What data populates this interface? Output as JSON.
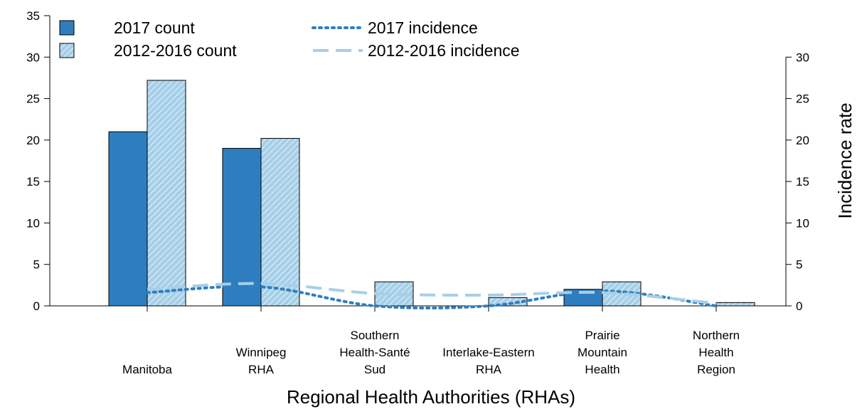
{
  "chart_data": {
    "type": "bar_line",
    "x_label": "Regional Health Authorities (RHAs)",
    "y2_label": "Incidence rate",
    "categories": [
      "Manitoba",
      "Winnipeg\nRHA",
      "Southern\nHealth-Santé\nSud",
      "Interlake-Eastern\nRHA",
      "Prairie\nMountain\nHealth",
      "Northern\nHealth\nRegion"
    ],
    "series": [
      {
        "name": "2017 count",
        "type": "bar",
        "color": "#2e7ebf",
        "values": [
          21,
          19,
          0,
          0,
          2,
          0
        ]
      },
      {
        "name": "2012-2016 count",
        "type": "bar",
        "color": "#a6cfe8",
        "hatch": true,
        "values": [
          27.2,
          20.2,
          2.9,
          1.0,
          2.9,
          0.4
        ]
      },
      {
        "name": "2017 incidence",
        "type": "line",
        "style": "dotted",
        "axis": "y2",
        "color": "#2e7ebf",
        "values": [
          1.6,
          2.3,
          0,
          0,
          1.8,
          0
        ]
      },
      {
        "name": "2012-2016 incidence",
        "type": "line",
        "style": "dashed",
        "axis": "y2",
        "color": "#a6cfe8",
        "values": [
          2.0,
          2.7,
          1.5,
          1.3,
          1.6,
          0.3
        ]
      }
    ],
    "ylim": [
      0,
      35
    ],
    "yticks": [
      0,
      5,
      10,
      15,
      20,
      25,
      30,
      35
    ],
    "y2lim": [
      0,
      35
    ],
    "y2ticks": [
      0,
      5,
      10,
      15,
      20,
      25,
      30
    ]
  }
}
